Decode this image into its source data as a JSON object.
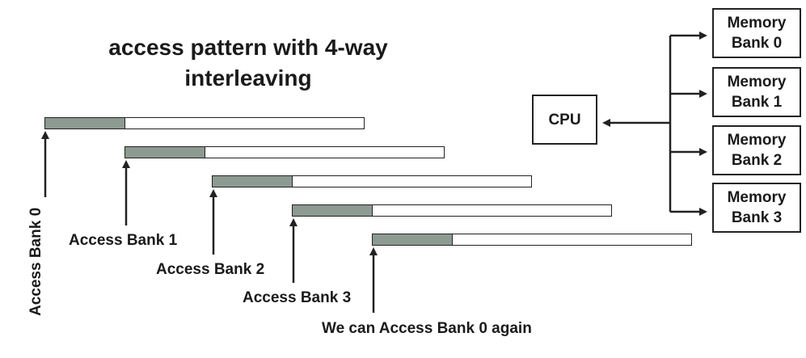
{
  "title": "access pattern with 4-way interleaving",
  "accesses": [
    {
      "label": "Access Bank 0"
    },
    {
      "label": "Access Bank 1"
    },
    {
      "label": "Access Bank 2"
    },
    {
      "label": "Access Bank 3"
    },
    {
      "label": "We can Access Bank 0 again"
    }
  ],
  "cpu": {
    "label": "CPU"
  },
  "banks": [
    {
      "line1": "Memory",
      "line2": "Bank 0"
    },
    {
      "line1": "Memory",
      "line2": "Bank 1"
    },
    {
      "line1": "Memory",
      "line2": "Bank 2"
    },
    {
      "line1": "Memory",
      "line2": "Bank 3"
    }
  ],
  "colors": {
    "access_fill": "#8c9a91",
    "line": "#222222"
  }
}
